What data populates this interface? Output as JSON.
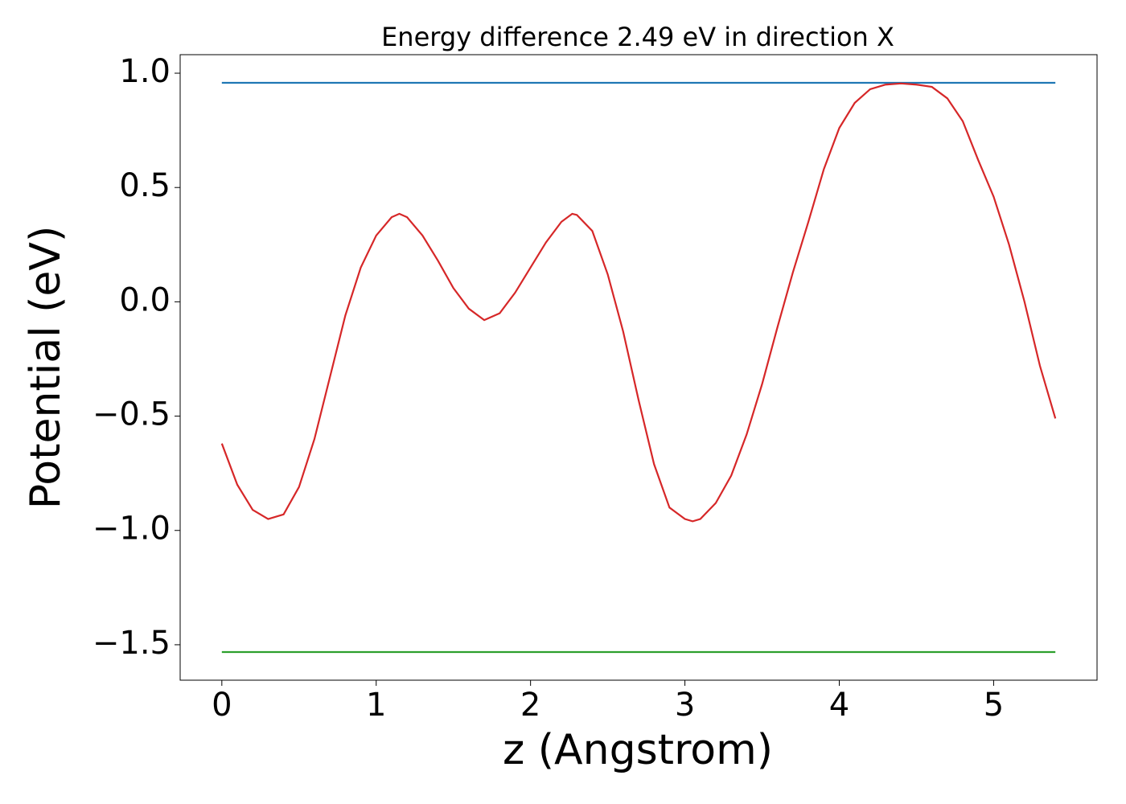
{
  "chart_data": {
    "type": "line",
    "title": "Energy difference 2.49 eV in direction X",
    "xlabel": "z (Angstrom)",
    "ylabel": "Potential (eV)",
    "xlim": [
      -0.27,
      5.67
    ],
    "ylim": [
      -1.655,
      1.081
    ],
    "xticks": [
      0,
      1,
      2,
      3,
      4,
      5
    ],
    "yticks": [
      {
        "value": 1.0,
        "label": "1.0"
      },
      {
        "value": 0.5,
        "label": "0.5"
      },
      {
        "value": 0.0,
        "label": "0.0"
      },
      {
        "value": -0.5,
        "label": "−0.5"
      },
      {
        "value": -1.0,
        "label": "−1.0"
      },
      {
        "value": -1.5,
        "label": "−1.5"
      }
    ],
    "series": [
      {
        "color": "#1f77b4",
        "x": [
          0,
          5.4
        ],
        "values": [
          0.958,
          0.958
        ]
      },
      {
        "color": "#2ca02c",
        "x": [
          0,
          5.4
        ],
        "values": [
          -1.532,
          -1.532
        ]
      },
      {
        "color": "#d62728",
        "x": [
          0,
          0.1,
          0.2,
          0.3,
          0.4,
          0.5,
          0.6,
          0.7,
          0.8,
          0.9,
          1.0,
          1.1,
          1.15,
          1.2,
          1.3,
          1.4,
          1.5,
          1.6,
          1.7,
          1.8,
          1.9,
          2.0,
          2.1,
          2.2,
          2.27,
          2.3,
          2.4,
          2.5,
          2.6,
          2.7,
          2.8,
          2.9,
          3.0,
          3.05,
          3.1,
          3.2,
          3.3,
          3.4,
          3.5,
          3.6,
          3.7,
          3.8,
          3.9,
          4.0,
          4.1,
          4.2,
          4.3,
          4.4,
          4.5,
          4.6,
          4.7,
          4.8,
          4.9,
          5.0,
          5.1,
          5.2,
          5.3,
          5.4
        ],
        "values": [
          -0.62,
          -0.8,
          -0.91,
          -0.95,
          -0.93,
          -0.81,
          -0.6,
          -0.33,
          -0.06,
          0.15,
          0.29,
          0.37,
          0.385,
          0.37,
          0.29,
          0.18,
          0.06,
          -0.03,
          -0.08,
          -0.05,
          0.04,
          0.15,
          0.26,
          0.35,
          0.385,
          0.38,
          0.31,
          0.12,
          -0.13,
          -0.43,
          -0.71,
          -0.9,
          -0.95,
          -0.96,
          -0.95,
          -0.88,
          -0.76,
          -0.58,
          -0.36,
          -0.11,
          0.13,
          0.35,
          0.58,
          0.76,
          0.87,
          0.93,
          0.95,
          0.955,
          0.95,
          0.94,
          0.89,
          0.79,
          0.62,
          0.46,
          0.25,
          0.0,
          -0.28,
          -0.51
        ]
      }
    ]
  }
}
